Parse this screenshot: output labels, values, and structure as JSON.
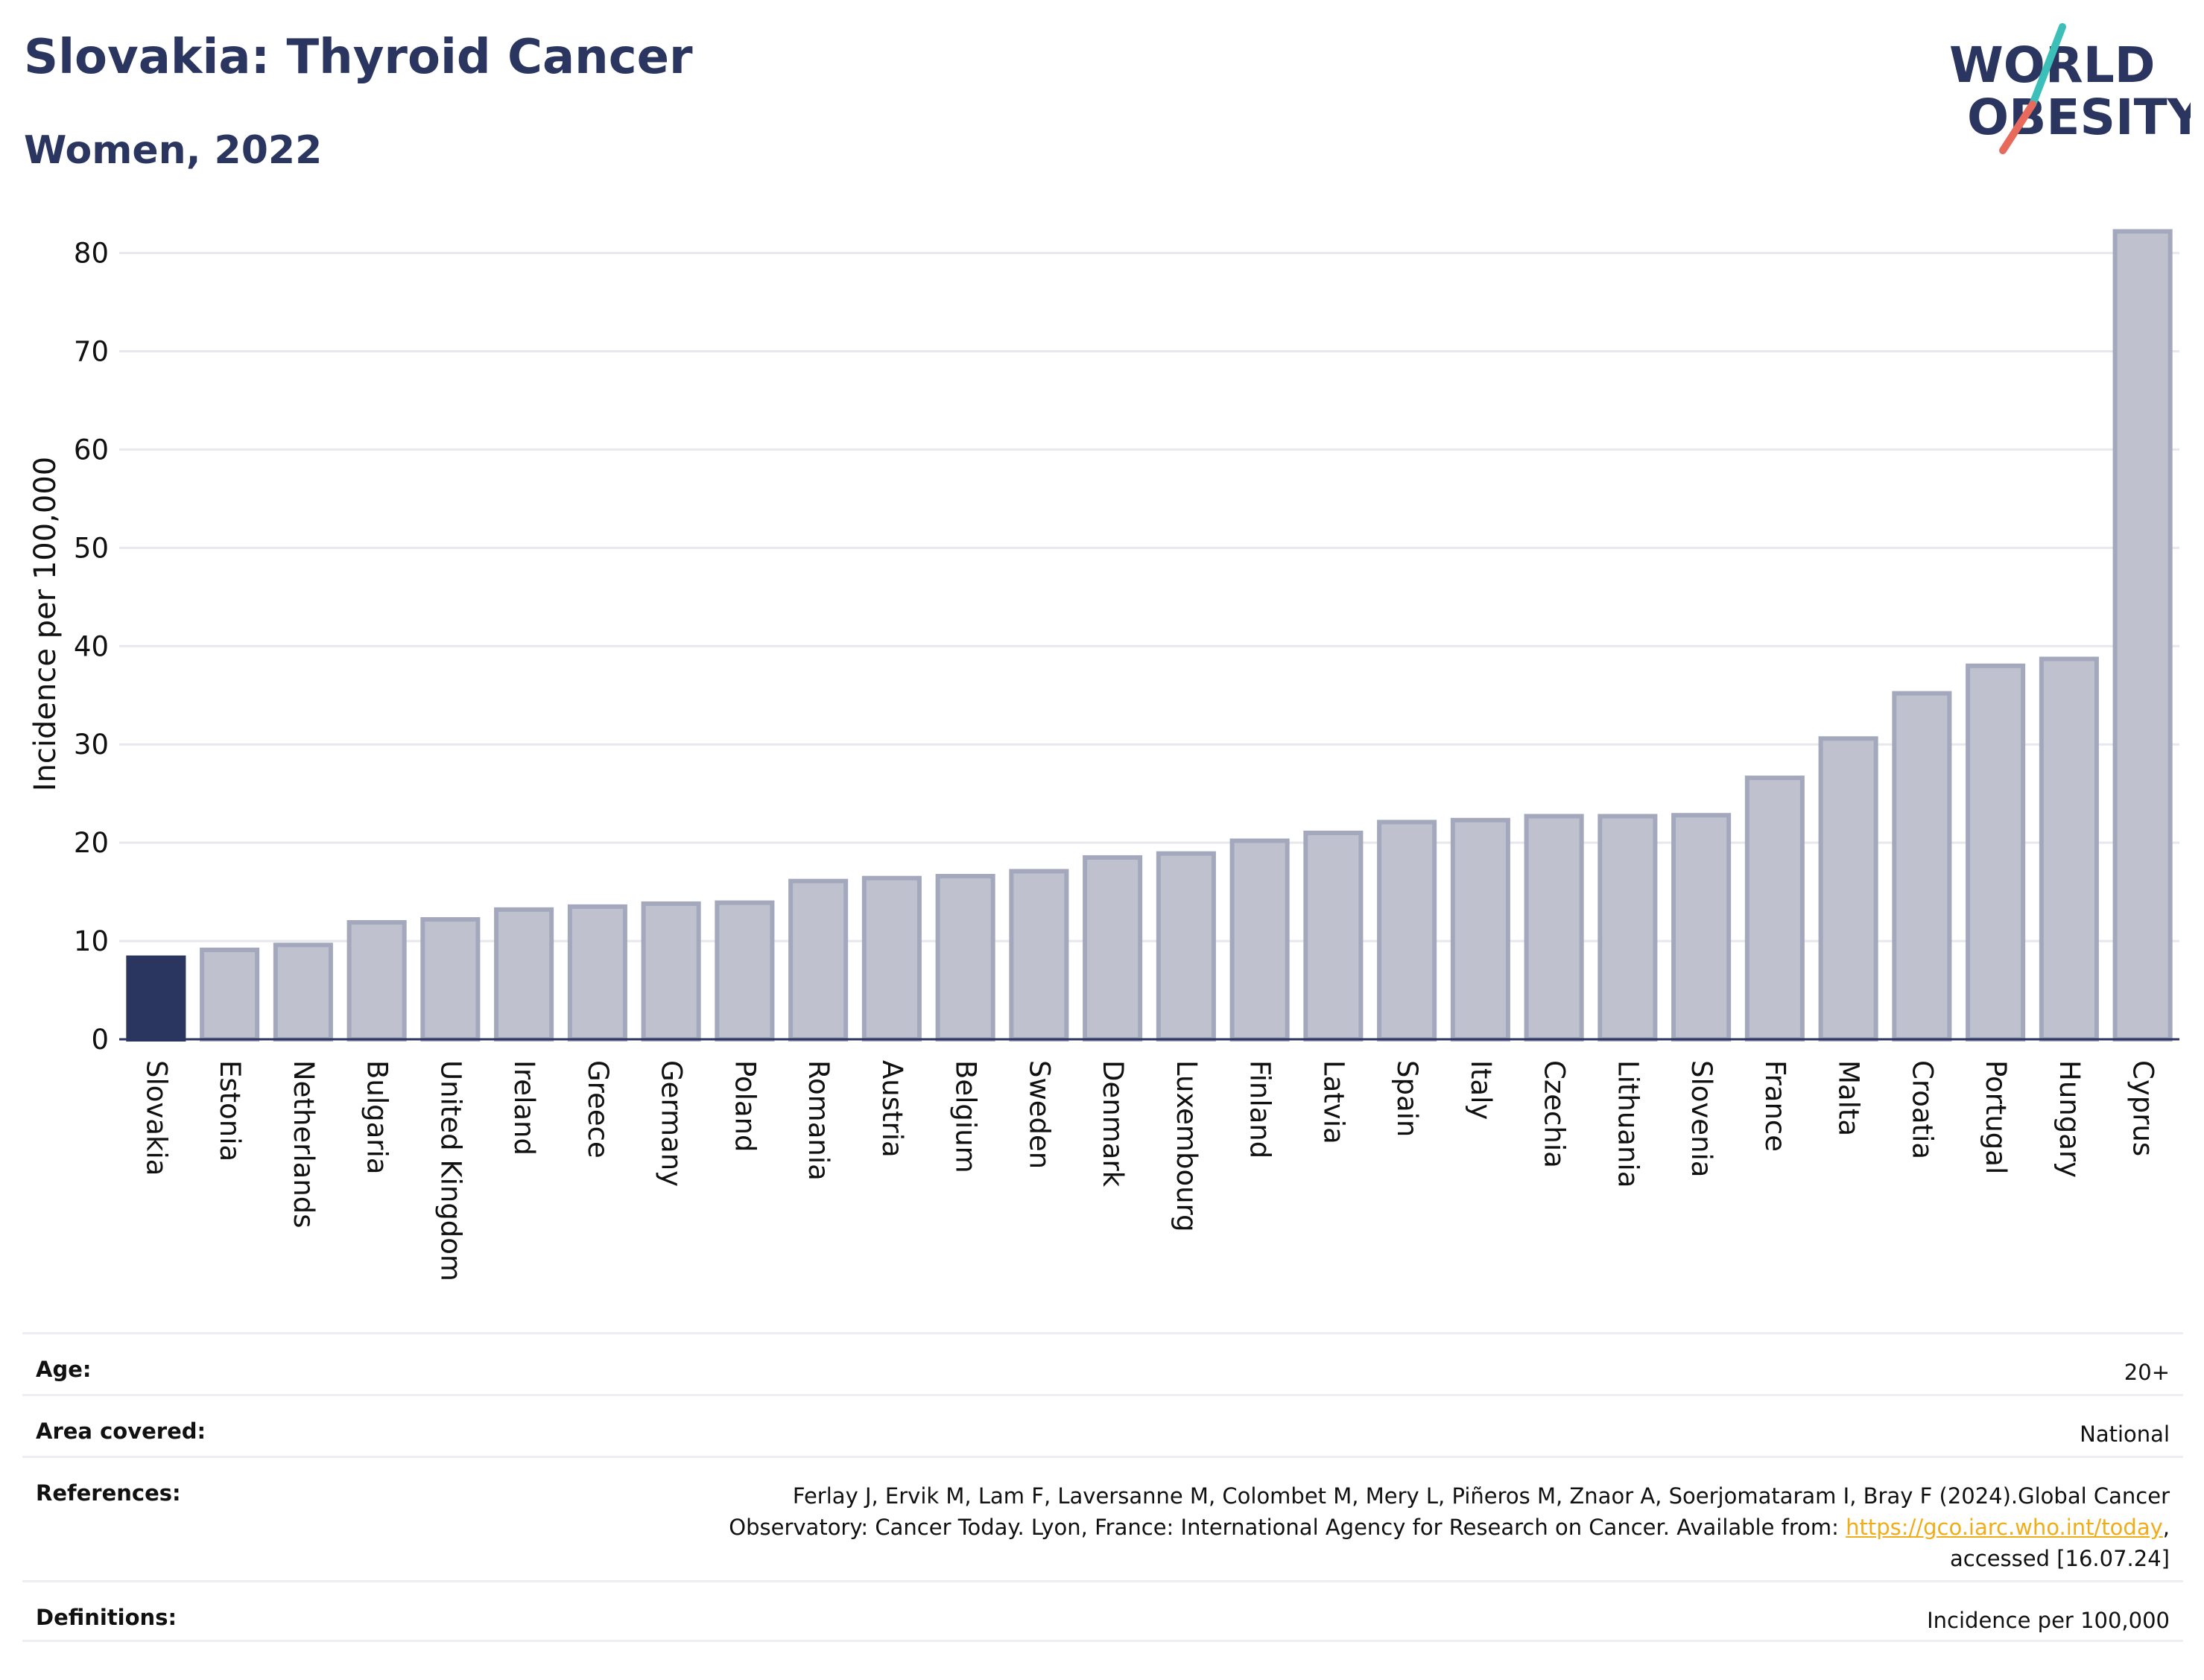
{
  "header": {
    "title": "Slovakia: Thyroid Cancer",
    "subtitle": "Women, 2022"
  },
  "logo": {
    "line1": "WORLD",
    "line2": "OBESITY",
    "colors": {
      "text": "#2a3560",
      "slash_teal": "#3bbfb8",
      "slash_red": "#e86a5c"
    }
  },
  "chart_data": {
    "type": "bar",
    "ylabel": "Incidence per 100,000",
    "xlabel": "",
    "ylim": [
      0,
      83
    ],
    "yticks": [
      0,
      10,
      20,
      30,
      40,
      50,
      60,
      70,
      80
    ],
    "grid": true,
    "categories": [
      "Slovakia",
      "Estonia",
      "Netherlands",
      "Bulgaria",
      "United Kingdom",
      "Ireland",
      "Greece",
      "Germany",
      "Poland",
      "Romania",
      "Austria",
      "Belgium",
      "Sweden",
      "Denmark",
      "Luxembourg",
      "Finland",
      "Latvia",
      "Spain",
      "Italy",
      "Czechia",
      "Lithuania",
      "Slovenia",
      "France",
      "Malta",
      "Croatia",
      "Portugal",
      "Hungary",
      "Cyprus"
    ],
    "values": [
      8.3,
      9.1,
      9.6,
      11.9,
      12.2,
      13.2,
      13.5,
      13.8,
      13.9,
      16.1,
      16.4,
      16.6,
      17.1,
      18.5,
      18.9,
      20.2,
      21.0,
      22.1,
      22.3,
      22.7,
      22.7,
      22.8,
      26.6,
      30.6,
      35.2,
      38.0,
      38.7,
      82.2
    ],
    "highlight": "Slovakia",
    "colors": {
      "highlight": "#2a3560",
      "bar_fill": "#bfc2ce",
      "bar_stroke": "#a3a8bc",
      "grid": "#e6e8ee"
    }
  },
  "meta": {
    "age_label": "Age:",
    "age_value": "20+",
    "area_label": "Area covered:",
    "area_value": "National",
    "references_label": "References:",
    "references_line1": "Ferlay J, Ervik M, Lam F, Laversanne M, Colombet M, Mery L, Piñeros M, Znaor A, Soerjomataram I, Bray F (2024).Global Cancer",
    "references_line2_pre": "Observatory: Cancer Today. Lyon, France: International Agency for Research on Cancer. Available from: ",
    "references_link": "https://gco.iarc.who.int/today",
    "references_line2_post": ",",
    "references_line3": "accessed [16.07.24]",
    "definitions_label": "Definitions:",
    "definitions_value": "Incidence per 100,000"
  }
}
